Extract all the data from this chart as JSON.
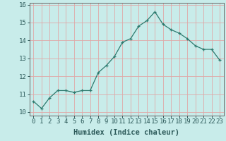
{
  "x": [
    0,
    1,
    2,
    3,
    4,
    5,
    6,
    7,
    8,
    9,
    10,
    11,
    12,
    13,
    14,
    15,
    16,
    17,
    18,
    19,
    20,
    21,
    22,
    23
  ],
  "y": [
    10.6,
    10.2,
    10.8,
    11.2,
    11.2,
    11.1,
    11.2,
    11.2,
    12.2,
    12.6,
    13.1,
    13.9,
    14.1,
    14.8,
    15.1,
    15.6,
    14.9,
    14.6,
    14.4,
    14.1,
    13.7,
    13.5,
    13.5,
    12.9
  ],
  "xlabel": "Humidex (Indice chaleur)",
  "ylim": [
    9.8,
    16.1
  ],
  "xlim": [
    -0.5,
    23.5
  ],
  "yticks": [
    10,
    11,
    12,
    13,
    14,
    15,
    16
  ],
  "xticks": [
    0,
    1,
    2,
    3,
    4,
    5,
    6,
    7,
    8,
    9,
    10,
    11,
    12,
    13,
    14,
    15,
    16,
    17,
    18,
    19,
    20,
    21,
    22,
    23
  ],
  "line_color": "#2d7a6e",
  "marker": "+",
  "bg_color": "#c8ecea",
  "grid_color": "#dfa8a8",
  "axis_color": "#666666",
  "xlabel_fontsize": 7.5,
  "tick_fontsize": 6.5
}
